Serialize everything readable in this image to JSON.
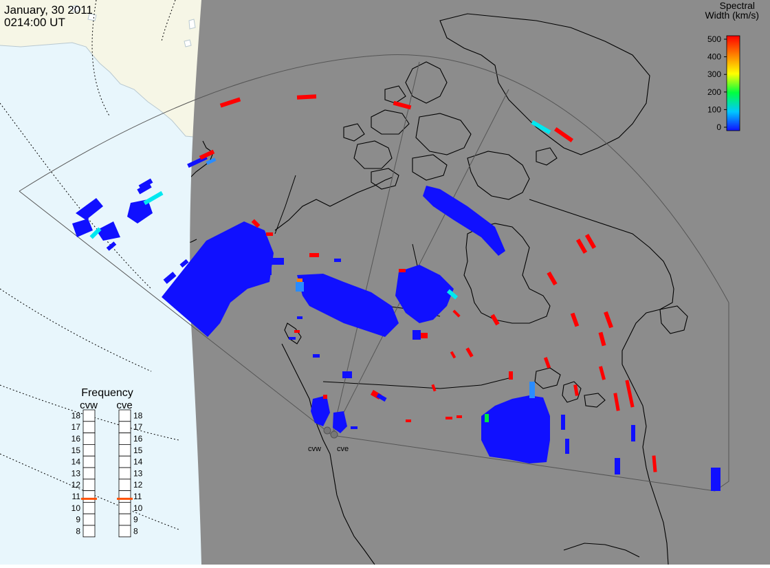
{
  "header": {
    "date": "January, 30 2011",
    "time": "0214:00 UT"
  },
  "colorbar": {
    "title_line1": "Spectral",
    "title_line2": "Width (km/s)",
    "ticks": [
      "500",
      "400",
      "300",
      "200",
      "100",
      "0"
    ],
    "min": 0,
    "max": 500,
    "stops": [
      "#1010ff",
      "#00c8ff",
      "#00ff40",
      "#ffff00",
      "#ff8000",
      "#ff0000"
    ]
  },
  "frequency": {
    "title": "Frequency",
    "radars": [
      {
        "name": "cvw",
        "current_mhz": 10.8
      },
      {
        "name": "cve",
        "current_mhz": 10.8
      }
    ],
    "ticks": [
      "18",
      "17",
      "16",
      "15",
      "14",
      "13",
      "12",
      "11",
      "10",
      "9",
      "8"
    ]
  },
  "radars": [
    {
      "label": "cvw"
    },
    {
      "label": "cve"
    }
  ],
  "colors": {
    "ocean_dark": "#8c8c8c",
    "ocean_day": "#e8f6fc",
    "land_day": "#f6f6e6",
    "echo_low": "#1010ff",
    "echo_high": "#ff0000",
    "echo_cyan": "#00e8f0",
    "indicator": "#ff5000"
  }
}
